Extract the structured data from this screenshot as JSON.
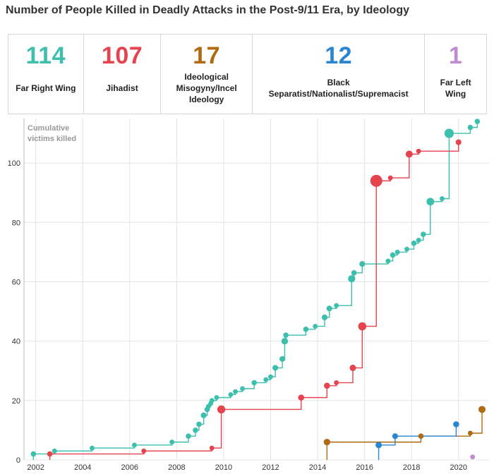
{
  "title": "Number of People Killed in Deadly Attacks in the Post-9/11 Era, by Ideology",
  "cards": [
    {
      "value": "114",
      "label": "Far Right Wing",
      "color": "#3dbfad"
    },
    {
      "value": "107",
      "label": "Jihadist",
      "color": "#e5434d"
    },
    {
      "value": "17",
      "label": "Ideological Misogyny/Incel Ideology",
      "color": "#b06a12"
    },
    {
      "value": "12",
      "label": "Black Separatist/Nationalist/Supremacist",
      "color": "#2a86d1"
    },
    {
      "value": "1",
      "label": "Far Left Wing",
      "color": "#c08ad1"
    }
  ],
  "chart_data": {
    "type": "line",
    "step": true,
    "ylabel_lines": [
      "Cumulative",
      "victims killed"
    ],
    "xlim": [
      2001.5,
      2021.3
    ],
    "ylim": [
      0,
      115
    ],
    "xticks": [
      2002,
      2004,
      2006,
      2008,
      2010,
      2012,
      2014,
      2016,
      2018,
      2020
    ],
    "yticks": [
      0,
      20,
      40,
      60,
      80,
      100
    ],
    "series": [
      {
        "name": "Far Right Wing",
        "color": "#3dbfad",
        "points": [
          [
            2001.9,
            2,
            2
          ],
          [
            2002.8,
            3,
            1
          ],
          [
            2004.4,
            4,
            1
          ],
          [
            2006.2,
            5,
            1
          ],
          [
            2007.8,
            6,
            1
          ],
          [
            2008.5,
            8,
            2
          ],
          [
            2008.8,
            10,
            2
          ],
          [
            2008.95,
            12,
            2
          ],
          [
            2009.15,
            15,
            3
          ],
          [
            2009.3,
            17,
            2
          ],
          [
            2009.35,
            18,
            1
          ],
          [
            2009.45,
            19,
            1
          ],
          [
            2009.5,
            20,
            1
          ],
          [
            2009.7,
            21,
            1
          ],
          [
            2010.3,
            22,
            1
          ],
          [
            2010.5,
            23,
            1
          ],
          [
            2010.8,
            24,
            1
          ],
          [
            2011.3,
            26,
            2
          ],
          [
            2011.8,
            27,
            1
          ],
          [
            2012.0,
            28,
            1
          ],
          [
            2012.2,
            31,
            3
          ],
          [
            2012.5,
            34,
            3
          ],
          [
            2012.6,
            40,
            6
          ],
          [
            2012.65,
            42,
            2
          ],
          [
            2013.5,
            44,
            2
          ],
          [
            2013.9,
            45,
            1
          ],
          [
            2014.3,
            48,
            3
          ],
          [
            2014.5,
            51,
            3
          ],
          [
            2014.8,
            52,
            1
          ],
          [
            2015.45,
            61,
            9
          ],
          [
            2015.55,
            63,
            2
          ],
          [
            2015.9,
            66,
            3
          ],
          [
            2017.0,
            67,
            1
          ],
          [
            2017.2,
            69,
            2
          ],
          [
            2017.4,
            70,
            1
          ],
          [
            2017.8,
            71,
            1
          ],
          [
            2018.1,
            73,
            2
          ],
          [
            2018.3,
            74,
            1
          ],
          [
            2018.5,
            76,
            2
          ],
          [
            2018.8,
            87,
            11
          ],
          [
            2019.3,
            88,
            1
          ],
          [
            2019.6,
            110,
            22
          ],
          [
            2020.5,
            112,
            2
          ],
          [
            2020.8,
            114,
            2
          ]
        ]
      },
      {
        "name": "Jihadist",
        "color": "#e5434d",
        "points": [
          [
            2002.6,
            2,
            2
          ],
          [
            2006.6,
            3,
            1
          ],
          [
            2009.5,
            4,
            1
          ],
          [
            2009.9,
            17,
            13
          ],
          [
            2013.3,
            21,
            4
          ],
          [
            2014.4,
            25,
            4
          ],
          [
            2014.8,
            26,
            1
          ],
          [
            2015.5,
            31,
            5
          ],
          [
            2015.9,
            45,
            14
          ],
          [
            2016.5,
            94,
            49
          ],
          [
            2017.1,
            95,
            1
          ],
          [
            2017.9,
            103,
            8
          ],
          [
            2018.3,
            104,
            1
          ],
          [
            2020.0,
            107,
            3
          ]
        ]
      },
      {
        "name": "Ideological Misogyny/Incel Ideology",
        "color": "#b06a12",
        "points": [
          [
            2014.4,
            6,
            6
          ],
          [
            2018.4,
            8,
            2
          ],
          [
            2020.5,
            9,
            1
          ],
          [
            2021.0,
            17,
            8
          ]
        ]
      },
      {
        "name": "Black Separatist/Nationalist/Supremacist",
        "color": "#2a86d1",
        "points": [
          [
            2016.6,
            5,
            5
          ],
          [
            2017.3,
            8,
            3
          ],
          [
            2019.9,
            12,
            4
          ]
        ]
      },
      {
        "name": "Far Left Wing",
        "color": "#c08ad1",
        "points": [
          [
            2020.6,
            1,
            1
          ]
        ]
      }
    ]
  }
}
